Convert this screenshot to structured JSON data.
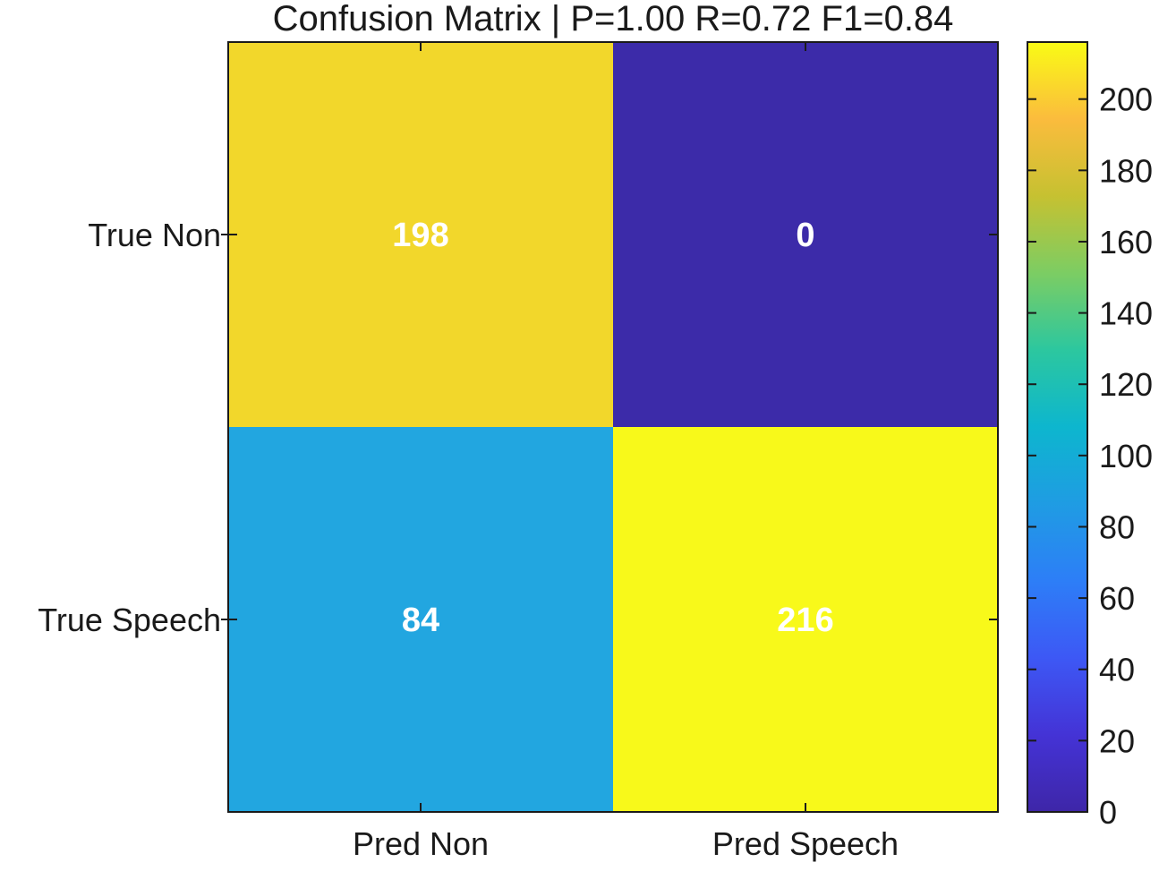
{
  "chart_data": {
    "type": "heatmap",
    "title": "Confusion Matrix | P=1.00 R=0.72 F1=0.84",
    "x_categories": [
      "Pred Non",
      "Pred Speech"
    ],
    "y_categories": [
      "True Non",
      "True Speech"
    ],
    "values": [
      [
        198,
        0
      ],
      [
        84,
        216
      ]
    ],
    "colorbar": {
      "range": [
        0,
        216
      ],
      "ticks": [
        0,
        20,
        40,
        60,
        80,
        100,
        120,
        140,
        160,
        180,
        200
      ],
      "colormap": "parula"
    },
    "colors": {
      "cells": [
        [
          "#f2d72b",
          "#3c2ba9"
        ],
        [
          "#22a6e0",
          "#f8f91a"
        ]
      ],
      "cell_text": "#ffffff",
      "axis": "#1a1a1a"
    }
  }
}
